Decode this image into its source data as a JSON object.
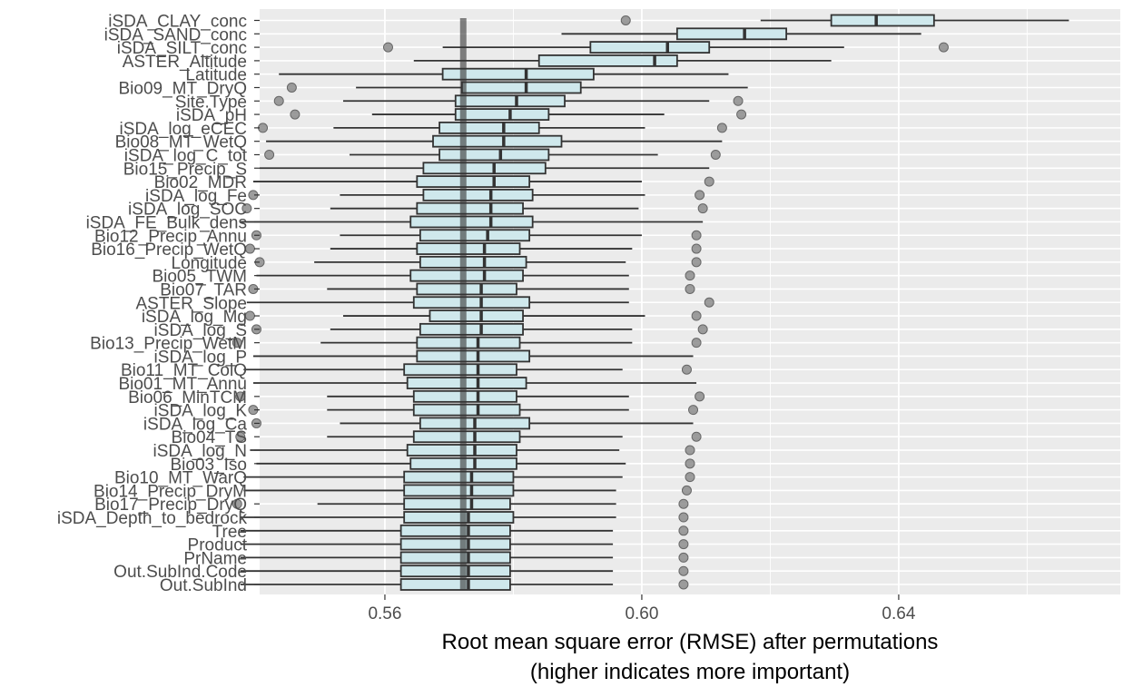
{
  "chart_data": {
    "type": "boxplot",
    "xlabel_line1": "Root mean square error (RMSE) after permutations",
    "xlabel_line2": "(higher indicates more important)",
    "x_ticks": [
      0.56,
      0.6,
      0.64
    ],
    "xlim": [
      0.5405,
      0.6745
    ],
    "reference_line": 0.5722,
    "box_fill": "#cfe8ec",
    "panel_background": "#ebebeb",
    "outlier_color": "#8c8c8c",
    "variables": [
      {
        "name": "iSDA_CLAY_conc",
        "whisker_low": 0.6185,
        "q1": 0.6295,
        "median": 0.6365,
        "q3": 0.6455,
        "whisker_high": 0.6665,
        "outliers": [
          0.5975
        ]
      },
      {
        "name": "iSDA_SAND_conc",
        "whisker_low": 0.5875,
        "q1": 0.6055,
        "median": 0.616,
        "q3": 0.6225,
        "whisker_high": 0.6435,
        "outliers": []
      },
      {
        "name": "iSDA_SILT_conc",
        "whisker_low": 0.569,
        "q1": 0.592,
        "median": 0.604,
        "q3": 0.6105,
        "whisker_high": 0.6315,
        "outliers": [
          0.5605,
          0.647
        ]
      },
      {
        "name": "ASTER_Altitude",
        "whisker_low": 0.5645,
        "q1": 0.584,
        "median": 0.602,
        "q3": 0.6055,
        "whisker_high": 0.6295,
        "outliers": []
      },
      {
        "name": "Latitude",
        "whisker_low": 0.5435,
        "q1": 0.569,
        "median": 0.582,
        "q3": 0.5925,
        "whisker_high": 0.6135,
        "outliers": []
      },
      {
        "name": "Bio09_MT_DryQ",
        "whisker_low": 0.5555,
        "q1": 0.572,
        "median": 0.582,
        "q3": 0.5905,
        "whisker_high": 0.6165,
        "outliers": [
          0.5455
        ]
      },
      {
        "name": "Site.Type",
        "whisker_low": 0.5535,
        "q1": 0.571,
        "median": 0.5805,
        "q3": 0.588,
        "whisker_high": 0.6105,
        "outliers": [
          0.5435,
          0.615
        ]
      },
      {
        "name": "iSDA_pH",
        "whisker_low": 0.558,
        "q1": 0.571,
        "median": 0.5795,
        "q3": 0.5855,
        "whisker_high": 0.6035,
        "outliers": [
          0.546,
          0.6155
        ]
      },
      {
        "name": "iSDA_log_eCEC",
        "whisker_low": 0.552,
        "q1": 0.5685,
        "median": 0.5785,
        "q3": 0.584,
        "whisker_high": 0.6005,
        "outliers": [
          0.541,
          0.6125
        ]
      },
      {
        "name": "Bio08_MT_WetQ",
        "whisker_low": 0.5415,
        "q1": 0.5675,
        "median": 0.5785,
        "q3": 0.5875,
        "whisker_high": 0.6125,
        "outliers": []
      },
      {
        "name": "iSDA_log_C_tot",
        "whisker_low": 0.5545,
        "q1": 0.5685,
        "median": 0.578,
        "q3": 0.5855,
        "whisker_high": 0.6025,
        "outliers": [
          0.542,
          0.6115
        ]
      },
      {
        "name": "Bio15_Precip_S",
        "whisker_low": 0.5405,
        "q1": 0.566,
        "median": 0.577,
        "q3": 0.585,
        "whisker_high": 0.6105,
        "outliers": []
      },
      {
        "name": "Bio02_MDR",
        "whisker_low": 0.5395,
        "q1": 0.565,
        "median": 0.577,
        "q3": 0.5825,
        "whisker_high": 0.6,
        "outliers": [
          0.6105
        ]
      },
      {
        "name": "iSDA_log_Fe",
        "whisker_low": 0.553,
        "q1": 0.566,
        "median": 0.5765,
        "q3": 0.583,
        "whisker_high": 0.6005,
        "outliers": [
          0.5395,
          0.609
        ]
      },
      {
        "name": "iSDA_log_SOC",
        "whisker_low": 0.5515,
        "q1": 0.565,
        "median": 0.5765,
        "q3": 0.5815,
        "whisker_high": 0.5995,
        "outliers": [
          0.5385,
          0.6095
        ]
      },
      {
        "name": "iSDA_FE_Bulk_dens",
        "whisker_low": 0.5375,
        "q1": 0.564,
        "median": 0.5765,
        "q3": 0.583,
        "whisker_high": 0.6095,
        "outliers": []
      },
      {
        "name": "Bio12_Precip_Annu",
        "whisker_low": 0.553,
        "q1": 0.5655,
        "median": 0.576,
        "q3": 0.5825,
        "whisker_high": 0.6,
        "outliers": [
          0.54,
          0.6085
        ]
      },
      {
        "name": "Bio16_Precip_WetQ",
        "whisker_low": 0.5515,
        "q1": 0.565,
        "median": 0.5755,
        "q3": 0.581,
        "whisker_high": 0.5985,
        "outliers": [
          0.539,
          0.6085
        ]
      },
      {
        "name": "Longitude",
        "whisker_low": 0.549,
        "q1": 0.5655,
        "median": 0.5755,
        "q3": 0.582,
        "whisker_high": 0.5975,
        "outliers": [
          0.5405,
          0.6085
        ]
      },
      {
        "name": "Bio05_TWM",
        "whisker_low": 0.54,
        "q1": 0.564,
        "median": 0.5755,
        "q3": 0.5815,
        "whisker_high": 0.598,
        "outliers": [
          0.6075
        ]
      },
      {
        "name": "Bio07_TAR",
        "whisker_low": 0.551,
        "q1": 0.565,
        "median": 0.575,
        "q3": 0.5805,
        "whisker_high": 0.598,
        "outliers": [
          0.5395,
          0.6075
        ]
      },
      {
        "name": "ASTER_Slope",
        "whisker_low": 0.5385,
        "q1": 0.5645,
        "median": 0.575,
        "q3": 0.5825,
        "whisker_high": 0.598,
        "outliers": [
          0.6105
        ]
      },
      {
        "name": "iSDA_log_Mg",
        "whisker_low": 0.5535,
        "q1": 0.567,
        "median": 0.575,
        "q3": 0.5815,
        "whisker_high": 0.6005,
        "outliers": [
          0.539,
          0.6085
        ]
      },
      {
        "name": "iSDA_log_S",
        "whisker_low": 0.5515,
        "q1": 0.5655,
        "median": 0.575,
        "q3": 0.5815,
        "whisker_high": 0.5985,
        "outliers": [
          0.54,
          0.6095
        ]
      },
      {
        "name": "Bio13_Precip_WetM",
        "whisker_low": 0.55,
        "q1": 0.565,
        "median": 0.5745,
        "q3": 0.581,
        "whisker_high": 0.5985,
        "outliers": [
          0.537,
          0.6085
        ]
      },
      {
        "name": "iSDA_log_P",
        "whisker_low": 0.5395,
        "q1": 0.565,
        "median": 0.5745,
        "q3": 0.5825,
        "whisker_high": 0.608,
        "outliers": []
      },
      {
        "name": "Bio11_MT_ColQ",
        "whisker_low": 0.538,
        "q1": 0.563,
        "median": 0.5745,
        "q3": 0.5805,
        "whisker_high": 0.597,
        "outliers": [
          0.607
        ]
      },
      {
        "name": "Bio01_MT_Annu",
        "whisker_low": 0.5395,
        "q1": 0.5635,
        "median": 0.5745,
        "q3": 0.582,
        "whisker_high": 0.6085,
        "outliers": []
      },
      {
        "name": "Bio06_MinTCM",
        "whisker_low": 0.551,
        "q1": 0.5645,
        "median": 0.5745,
        "q3": 0.5805,
        "whisker_high": 0.598,
        "outliers": [
          0.5375,
          0.609
        ]
      },
      {
        "name": "iSDA_log_K",
        "whisker_low": 0.551,
        "q1": 0.5645,
        "median": 0.5745,
        "q3": 0.581,
        "whisker_high": 0.598,
        "outliers": [
          0.5395,
          0.608
        ]
      },
      {
        "name": "iSDA_log_Ca",
        "whisker_low": 0.553,
        "q1": 0.5655,
        "median": 0.574,
        "q3": 0.5825,
        "whisker_high": 0.608,
        "outliers": [
          0.54
        ]
      },
      {
        "name": "Bio04_TS",
        "whisker_low": 0.551,
        "q1": 0.5645,
        "median": 0.574,
        "q3": 0.581,
        "whisker_high": 0.597,
        "outliers": [
          0.5375,
          0.6085
        ]
      },
      {
        "name": "iSDA_log_N",
        "whisker_low": 0.539,
        "q1": 0.5635,
        "median": 0.574,
        "q3": 0.5805,
        "whisker_high": 0.5965,
        "outliers": [
          0.6075
        ]
      },
      {
        "name": "Bio03_Iso",
        "whisker_low": 0.54,
        "q1": 0.564,
        "median": 0.574,
        "q3": 0.5805,
        "whisker_high": 0.5975,
        "outliers": [
          0.6075
        ]
      },
      {
        "name": "Bio10_MT_WarQ",
        "whisker_low": 0.538,
        "q1": 0.563,
        "median": 0.5735,
        "q3": 0.58,
        "whisker_high": 0.597,
        "outliers": [
          0.6075
        ]
      },
      {
        "name": "Bio14_Precip_DryM",
        "whisker_low": 0.538,
        "q1": 0.563,
        "median": 0.5735,
        "q3": 0.58,
        "whisker_high": 0.596,
        "outliers": [
          0.607
        ]
      },
      {
        "name": "Bio17_Precip_DryQ",
        "whisker_low": 0.5495,
        "q1": 0.563,
        "median": 0.5735,
        "q3": 0.5795,
        "whisker_high": 0.596,
        "outliers": [
          0.537,
          0.6065
        ]
      },
      {
        "name": "iSDA_Depth_to_bedrock",
        "whisker_low": 0.5375,
        "q1": 0.563,
        "median": 0.573,
        "q3": 0.58,
        "whisker_high": 0.596,
        "outliers": [
          0.6065
        ]
      },
      {
        "name": "Tree",
        "whisker_low": 0.5375,
        "q1": 0.5625,
        "median": 0.573,
        "q3": 0.5795,
        "whisker_high": 0.5955,
        "outliers": [
          0.6065
        ]
      },
      {
        "name": "Product",
        "whisker_low": 0.5375,
        "q1": 0.5625,
        "median": 0.573,
        "q3": 0.5795,
        "whisker_high": 0.5955,
        "outliers": [
          0.6065
        ]
      },
      {
        "name": "PrName",
        "whisker_low": 0.5375,
        "q1": 0.5625,
        "median": 0.573,
        "q3": 0.5795,
        "whisker_high": 0.5955,
        "outliers": [
          0.6065
        ]
      },
      {
        "name": "Out.SubInd.Code",
        "whisker_low": 0.5375,
        "q1": 0.5625,
        "median": 0.573,
        "q3": 0.5795,
        "whisker_high": 0.5955,
        "outliers": [
          0.6065
        ]
      },
      {
        "name": "Out.SubInd",
        "whisker_low": 0.5375,
        "q1": 0.5625,
        "median": 0.573,
        "q3": 0.5795,
        "whisker_high": 0.5955,
        "outliers": [
          0.6065
        ]
      }
    ]
  }
}
